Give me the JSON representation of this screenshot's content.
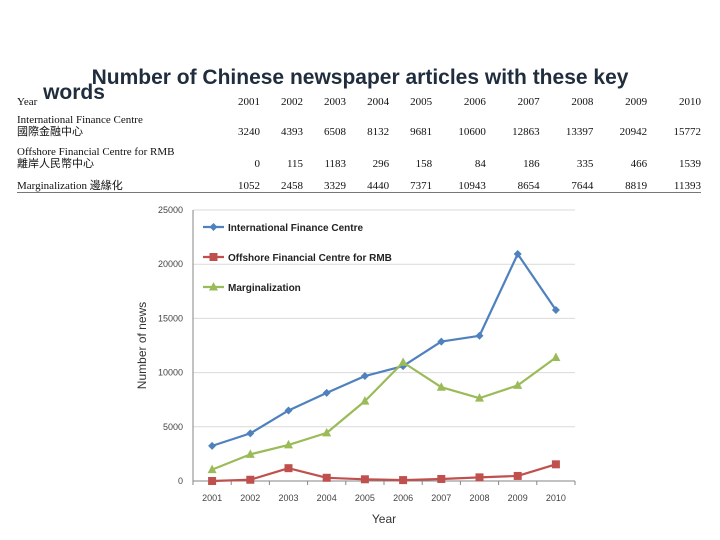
{
  "title_line1": "Number of Chinese newspaper articles with these key",
  "title_line2": "words",
  "table": {
    "header": [
      "Year",
      "2001",
      "2002",
      "2003",
      "2004",
      "2005",
      "2006",
      "2007",
      "2008",
      "2009",
      "2010"
    ],
    "rows": [
      {
        "label": [
          "International Finance Centre",
          "國際金融中心"
        ],
        "values": [
          "3240",
          "4393",
          "6508",
          "8132",
          "9681",
          "10600",
          "12863",
          "13397",
          "20942",
          "15772"
        ]
      },
      {
        "label": [
          "Offshore Financial Centre for RMB",
          "離岸人民幣中心"
        ],
        "values": [
          "0",
          "115",
          "1183",
          "296",
          "158",
          "84",
          "186",
          "335",
          "466",
          "1539"
        ]
      },
      {
        "label": [
          "Marginalization 邊緣化"
        ],
        "values": [
          "1052",
          "2458",
          "3329",
          "4440",
          "7371",
          "10943",
          "8654",
          "7644",
          "8819",
          "11393"
        ]
      }
    ]
  },
  "chart_data": {
    "type": "line",
    "title": "Number of Chinese newspaper articles with these key words",
    "xlabel": "Year",
    "ylabel": "Number of news",
    "ylim": [
      0,
      25000
    ],
    "yticks": [
      0,
      5000,
      10000,
      15000,
      20000,
      25000
    ],
    "ytick_labels": [
      "0",
      "5000",
      "10000",
      "15000",
      "20000",
      "25000"
    ],
    "categories": [
      "2001",
      "2002",
      "2003",
      "2004",
      "2005",
      "2006",
      "2007",
      "2008",
      "2009",
      "2010"
    ],
    "legend_position": "top-left",
    "grid": true,
    "series": [
      {
        "name": "International Finance Centre",
        "color": "#4f81bd",
        "marker": "diamond",
        "values": [
          3240,
          4393,
          6508,
          8132,
          9681,
          10600,
          12863,
          13397,
          20942,
          15772
        ]
      },
      {
        "name": "Offshore Financial Centre for RMB",
        "color": "#c0504d",
        "marker": "square",
        "values": [
          0,
          115,
          1183,
          296,
          158,
          84,
          186,
          335,
          466,
          1539
        ]
      },
      {
        "name": "Marginalization",
        "color": "#9bbb59",
        "marker": "triangle",
        "values": [
          1052,
          2458,
          3329,
          4440,
          7371,
          10943,
          8654,
          7644,
          8819,
          11393
        ]
      }
    ]
  }
}
